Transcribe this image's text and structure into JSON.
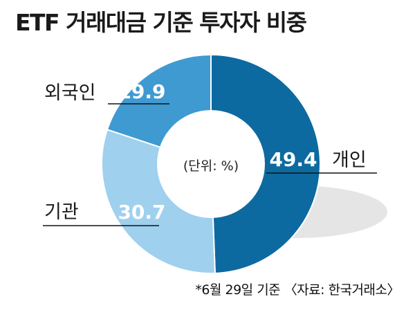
{
  "title": "ETF 거래대금 기준 투자자 비중",
  "footnote": "*6월 29일 기준 〈자료: 한국거래소〉",
  "chart_data": {
    "type": "pie",
    "donut": true,
    "title": "ETF 거래대금 기준 투자자 비중",
    "unit_label": "(단위: %)",
    "slices": [
      {
        "name": "개인",
        "value": 49.4,
        "color": "#0d6aa0"
      },
      {
        "name": "기관",
        "value": 30.7,
        "color": "#9fd0ee"
      },
      {
        "name": "외국인",
        "value": 19.9,
        "color": "#3f9ad1"
      }
    ]
  }
}
